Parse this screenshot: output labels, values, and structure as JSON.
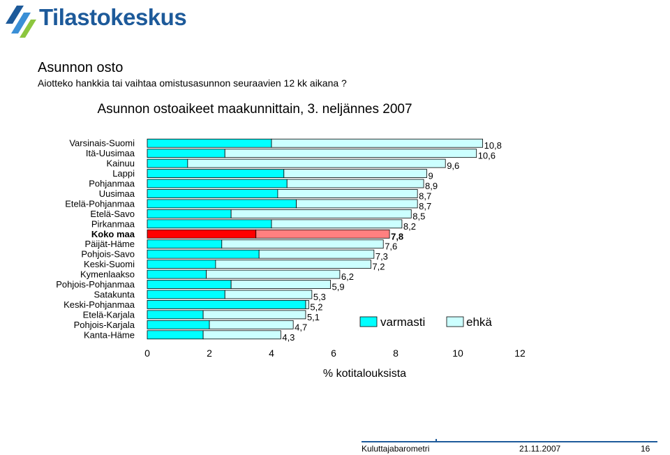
{
  "header": {
    "logo_text": "Tilastokeskus",
    "logo_color": "#1d5a9a",
    "title": "Asunnon osto",
    "subtitle": "Aiotteko hankkia tai vaihtaa omistusasunnon seuraavien 12 kk aikana ?"
  },
  "chart_data": {
    "type": "bar",
    "orientation": "horizontal",
    "stacked": true,
    "title": "Asunnon ostoaikeet maakunnittain, 3. neljännes 2007",
    "xlabel": "% kotitalouksista",
    "ylabel": "",
    "xlim": [
      0,
      12
    ],
    "xticks": [
      "0",
      "2",
      "4",
      "6",
      "8",
      "10",
      "12"
    ],
    "grid": false,
    "legend_position": "lower-right",
    "highlight_category": "Koko maa",
    "categories": [
      "Varsinais-Suomi",
      "Itä-Uusimaa",
      "Kainuu",
      "Lappi",
      "Pohjanmaa",
      "Uusimaa",
      "Etelä-Pohjanmaa",
      "Etelä-Savo",
      "Pirkanmaa",
      "Koko maa",
      "Päijät-Häme",
      "Pohjois-Savo",
      "Keski-Suomi",
      "Kymenlaakso",
      "Pohjois-Pohjanmaa",
      "Satakunta",
      "Keski-Pohjanmaa",
      "Etelä-Karjala",
      "Pohjois-Karjala",
      "Kanta-Häme"
    ],
    "series": [
      {
        "name": "varmasti",
        "color": "#00ffff",
        "highlight_color": "#ff0000",
        "values": [
          4.0,
          2.5,
          1.3,
          4.4,
          4.5,
          4.2,
          4.8,
          2.7,
          4.0,
          3.5,
          2.4,
          3.6,
          2.2,
          1.9,
          2.7,
          2.5,
          5.1,
          1.8,
          2.0,
          1.8
        ]
      },
      {
        "name": "ehkä",
        "color": "#ccffff",
        "highlight_color": "#ff8080",
        "values": [
          6.8,
          8.1,
          8.3,
          4.6,
          4.4,
          4.5,
          3.9,
          5.8,
          4.2,
          4.3,
          5.2,
          3.7,
          5.0,
          4.3,
          3.2,
          2.8,
          0.1,
          3.3,
          2.7,
          2.5
        ]
      }
    ],
    "totals": [
      "10,8",
      "10,6",
      "9,6",
      "9",
      "8,9",
      "8,7",
      "8,7",
      "8,5",
      "8,2",
      "7,8",
      "7,6",
      "7,3",
      "7,2",
      "6,2",
      "5,9",
      "5,3",
      "5,2",
      "5,1",
      "4,7",
      "4,3"
    ]
  },
  "footer": {
    "source": "Kuluttajabarometri",
    "date": "21.11.2007",
    "page": "16"
  }
}
